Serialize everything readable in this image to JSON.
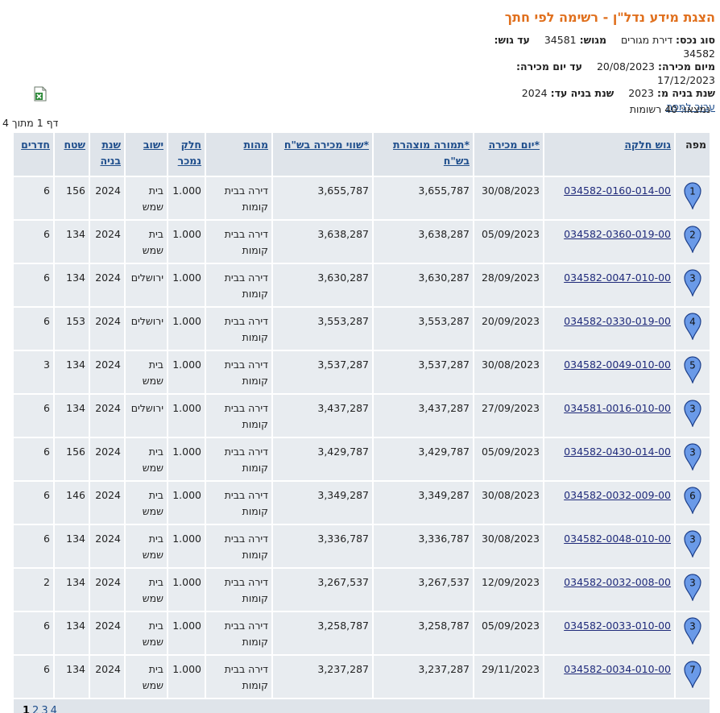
{
  "header": {
    "title": "הצגת מידע נדל\"ן - רשימה לפי חתך"
  },
  "filters": [
    [
      {
        "label": "סוג נכס:",
        "value": "דירת מגורים"
      },
      {
        "label": "מגוש:",
        "value": "34581"
      },
      {
        "label": "עד גוש:",
        "value": "34582"
      }
    ],
    [
      {
        "label": "מיום מכירה:",
        "value": "20/08/2023"
      },
      {
        "label": "עד יום מכירה:",
        "value": "17/12/2023"
      }
    ],
    [
      {
        "label": "שנת בניה מ:",
        "value": "2023"
      },
      {
        "label": "שנת בניה עד:",
        "value": "2024"
      }
    ]
  ],
  "map_link": "עבור למפה",
  "found": "נמצאו: 40 רשומות",
  "page_info": "דף 1 מתוך 4",
  "table": {
    "columns": [
      "מפה",
      "גוש חלקה",
      "*יום מכירה",
      "*תמורה מוצהרת בש\"ח",
      "*שווי מכירה בש\"ח",
      "מהות",
      "חלק נמכר",
      "ישוב",
      "שנת בניה",
      "שטח",
      "חדרים"
    ],
    "rows": [
      [
        "1",
        "034582-0160-014-00",
        "30/08/2023",
        "3,655,787",
        "3,655,787",
        "דירה בבית קומות",
        "1.000",
        "בית שמש",
        "2024",
        "156",
        "6"
      ],
      [
        "2",
        "034582-0360-019-00",
        "05/09/2023",
        "3,638,287",
        "3,638,287",
        "דירה בבית קומות",
        "1.000",
        "בית שמש",
        "2024",
        "134",
        "6"
      ],
      [
        "3",
        "034582-0047-010-00",
        "28/09/2023",
        "3,630,287",
        "3,630,287",
        "דירה בבית קומות",
        "1.000",
        "ירושלים",
        "2024",
        "134",
        "6"
      ],
      [
        "4",
        "034582-0330-019-00",
        "20/09/2023",
        "3,553,287",
        "3,553,287",
        "דירה בבית קומות",
        "1.000",
        "ירושלים",
        "2024",
        "153",
        "6"
      ],
      [
        "5",
        "034582-0049-010-00",
        "30/08/2023",
        "3,537,287",
        "3,537,287",
        "דירה בבית קומות",
        "1.000",
        "בית שמש",
        "2024",
        "134",
        "3"
      ],
      [
        "3",
        "034581-0016-010-00",
        "27/09/2023",
        "3,437,287",
        "3,437,287",
        "דירה בבית קומות",
        "1.000",
        "ירושלים",
        "2024",
        "134",
        "6"
      ],
      [
        "3",
        "034582-0430-014-00",
        "05/09/2023",
        "3,429,787",
        "3,429,787",
        "דירה בבית קומות",
        "1.000",
        "בית שמש",
        "2024",
        "156",
        "6"
      ],
      [
        "6",
        "034582-0032-009-00",
        "30/08/2023",
        "3,349,287",
        "3,349,287",
        "דירה בבית קומות",
        "1.000",
        "בית שמש",
        "2024",
        "146",
        "6"
      ],
      [
        "3",
        "034582-0048-010-00",
        "30/08/2023",
        "3,336,787",
        "3,336,787",
        "דירה בבית קומות",
        "1.000",
        "בית שמש",
        "2024",
        "134",
        "6"
      ],
      [
        "3",
        "034582-0032-008-00",
        "12/09/2023",
        "3,267,537",
        "3,267,537",
        "דירה בבית קומות",
        "1.000",
        "בית שמש",
        "2024",
        "134",
        "2"
      ],
      [
        "3",
        "034582-0033-010-00",
        "05/09/2023",
        "3,258,787",
        "3,258,787",
        "דירה בבית קומות",
        "1.000",
        "בית שמש",
        "2024",
        "134",
        "6"
      ],
      [
        "7",
        "034582-0034-010-00",
        "29/11/2023",
        "3,237,287",
        "3,237,287",
        "דירה בבית קומות",
        "1.000",
        "בית שמש",
        "2024",
        "134",
        "6"
      ]
    ]
  },
  "pager": [
    "1",
    "2",
    "3",
    "4"
  ]
}
